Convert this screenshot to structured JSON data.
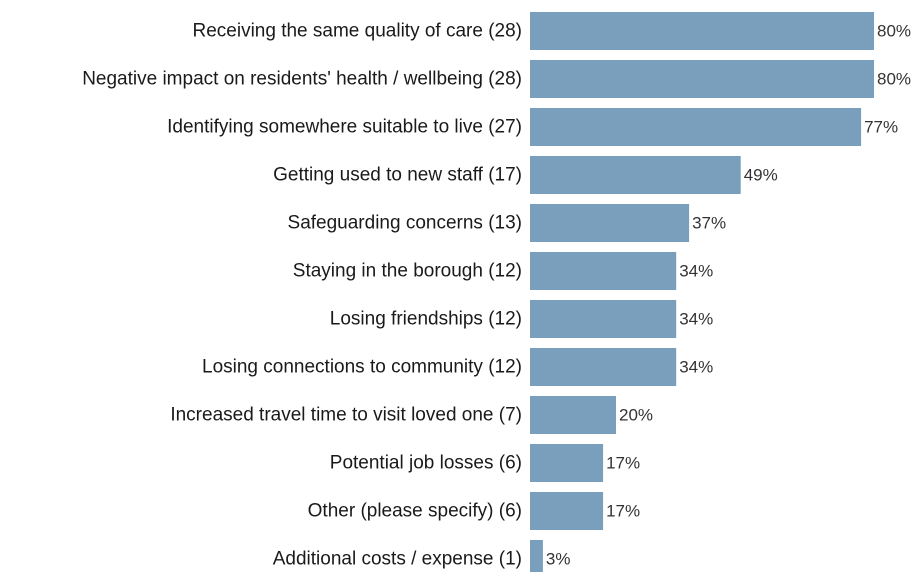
{
  "chart_data": {
    "type": "bar",
    "orientation": "horizontal",
    "categories": [
      "Receiving the same quality of care (28)",
      "Negative impact on residents' health / wellbeing (28)",
      "Identifying somewhere suitable to live (27)",
      "Getting used to new staff (17)",
      "Safeguarding concerns (13)",
      "Staying in the borough (12)",
      "Losing friendships (12)",
      "Losing connections to community (12)",
      "Increased travel time to visit loved one (7)",
      "Potential job losses (6)",
      "Other (please specify) (6)",
      "Additional costs / expense (1)"
    ],
    "values": [
      80,
      80,
      77,
      49,
      37,
      34,
      34,
      34,
      20,
      17,
      17,
      3
    ],
    "value_labels": [
      "80%",
      "80%",
      "77%",
      "49%",
      "37%",
      "34%",
      "34%",
      "34%",
      "20%",
      "17%",
      "17%",
      "3%"
    ],
    "xlim": [
      0,
      80
    ],
    "grid": false,
    "legend": "none",
    "title": "",
    "xlabel": "",
    "ylabel": ""
  },
  "colors": {
    "bar": "#7a9fbd",
    "category_text": "#1a1a1a",
    "value_text": "#333333"
  }
}
